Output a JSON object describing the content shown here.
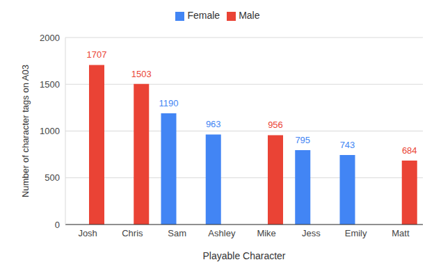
{
  "chart_data": {
    "type": "bar",
    "x_label": "Playable Character",
    "y_label": "Number of character tags on A03",
    "categories": [
      "Josh",
      "Chris",
      "Sam",
      "Ashley",
      "Mike",
      "Jess",
      "Emily",
      "Matt"
    ],
    "series": [
      {
        "name": "Female",
        "color": "#4285f4",
        "values": [
          null,
          null,
          1190,
          963,
          null,
          795,
          743,
          null
        ]
      },
      {
        "name": "Male",
        "color": "#ea4335",
        "values": [
          1707,
          1503,
          null,
          null,
          956,
          null,
          null,
          684
        ]
      }
    ],
    "ylim": [
      0,
      2000
    ],
    "yticks": [
      0,
      500,
      1000,
      1500,
      2000
    ],
    "grid": true,
    "legend": "top",
    "data_labels": true
  }
}
